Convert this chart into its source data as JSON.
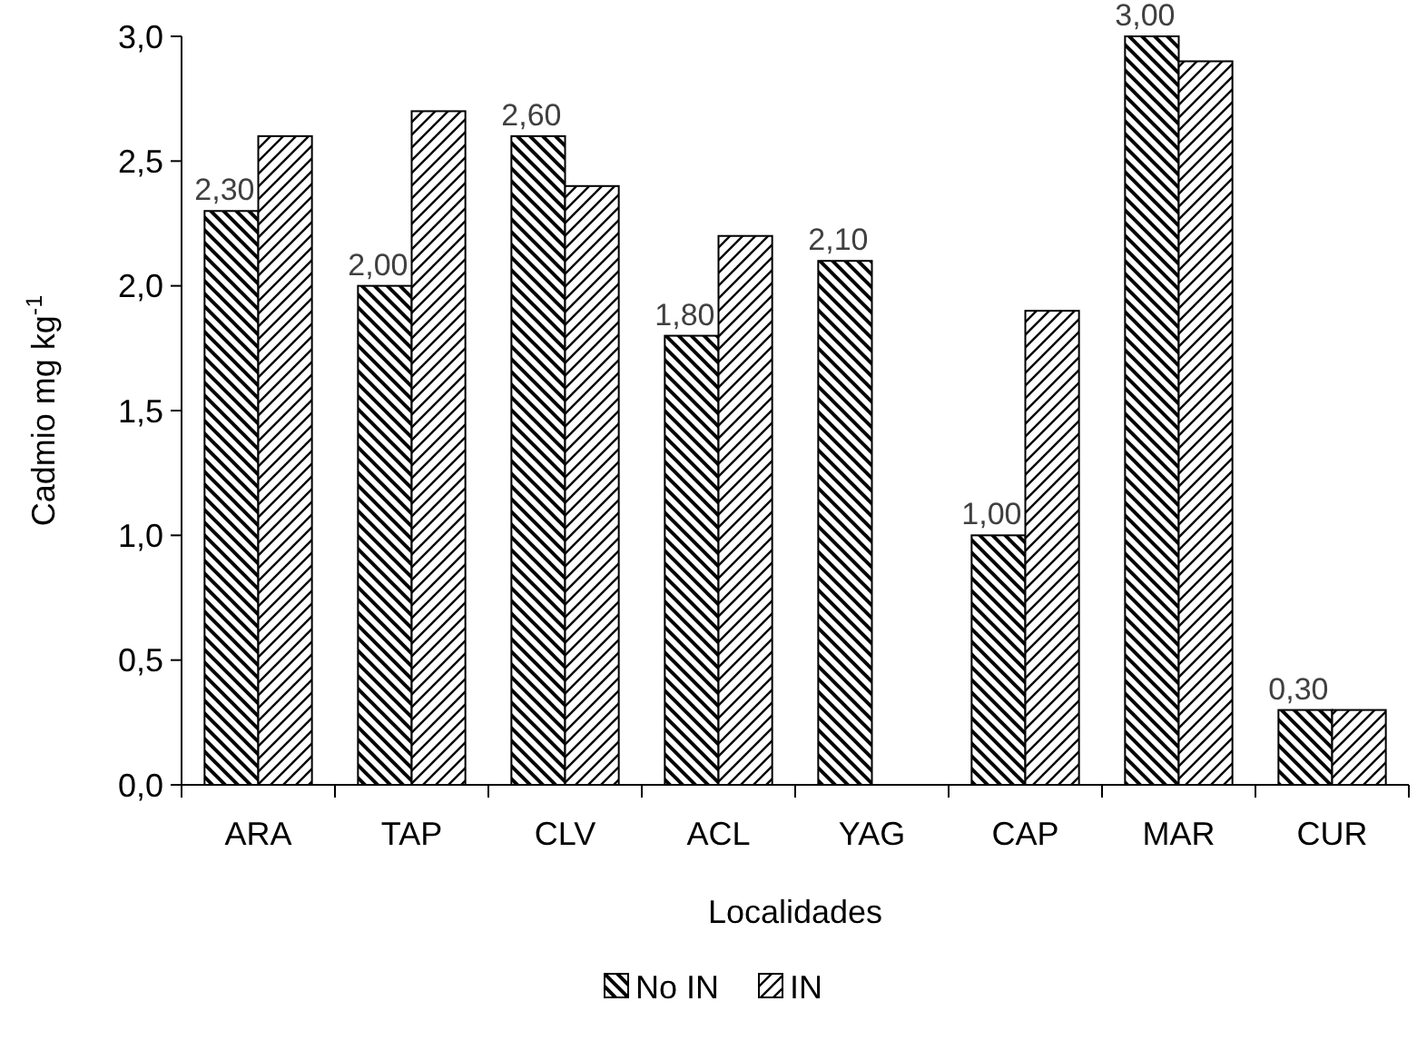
{
  "chart_data": {
    "type": "bar",
    "xlabel": "Localidades",
    "ylabel": "Cadmio mg kg$^{-1}$",
    "categories": [
      "ARA",
      "TAP",
      "CLV",
      "ACL",
      "YAG",
      "CAP",
      "MAR",
      "CUR"
    ],
    "series": [
      {
        "name": "No IN",
        "color": "#000000",
        "values": [
          2.3,
          2.0,
          2.6,
          1.8,
          2.1,
          1.0,
          3.0,
          0.3
        ],
        "value_labels": [
          "2,30",
          "2,00",
          "2,60",
          "1,80",
          "2,10",
          "1,00",
          "3,00",
          "0,30"
        ]
      },
      {
        "name": "IN",
        "color": "#000000",
        "values": [
          2.6,
          2.7,
          2.4,
          2.2,
          null,
          1.9,
          2.9,
          0.3
        ]
      }
    ],
    "ylim": [
      0,
      3
    ],
    "yticks": [
      {
        "value": 0,
        "label": "0,0"
      },
      {
        "value": 0.5,
        "label": "0,5"
      },
      {
        "value": 1,
        "label": "1,0"
      },
      {
        "value": 1.5,
        "label": "1,5"
      },
      {
        "value": 2,
        "label": "2,0"
      },
      {
        "value": 2.5,
        "label": "2,5"
      },
      {
        "value": 3,
        "label": "3,0"
      }
    ],
    "grid": false,
    "legend": "bottom"
  }
}
